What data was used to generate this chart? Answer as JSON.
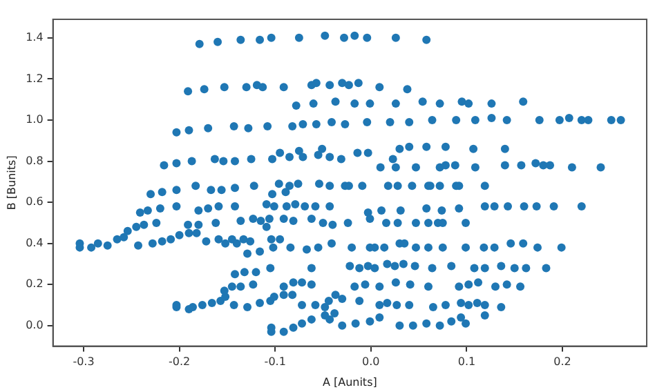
{
  "chart_data": {
    "type": "scatter",
    "xlabel": "A [Aunits]",
    "ylabel": "B [Bunits]",
    "marker": "circle",
    "grid": false,
    "legend": false,
    "xlim": [
      -0.332,
      0.288
    ],
    "ylim": [
      -0.1,
      1.49
    ],
    "xticks": [
      -0.3,
      -0.2,
      -0.1,
      {
        "value": 0,
        "label": "0.0"
      },
      0.1,
      0.2
    ],
    "yticks": [
      {
        "value": 0,
        "label": "0.0"
      },
      0.2,
      0.4,
      0.6,
      0.8,
      {
        "value": 1,
        "label": "1.0"
      },
      1.2,
      1.4
    ],
    "series": [
      {
        "color": "#1f77b4",
        "x": [
          -0.179,
          -0.16,
          -0.136,
          -0.116,
          -0.104,
          -0.075,
          -0.048,
          -0.028,
          -0.017,
          -0.004,
          0.026,
          0.058,
          -0.191,
          -0.174,
          -0.153,
          -0.13,
          -0.119,
          -0.113,
          -0.091,
          -0.062,
          -0.057,
          -0.043,
          -0.03,
          -0.023,
          -0.013,
          0.009,
          0.038,
          -0.078,
          -0.06,
          -0.037,
          -0.017,
          -0.001,
          0.026,
          0.054,
          0.072,
          0.095,
          0.102,
          0.126,
          0.159,
          -0.203,
          -0.19,
          -0.17,
          -0.143,
          -0.128,
          -0.108,
          -0.082,
          -0.071,
          -0.057,
          -0.041,
          -0.027,
          -0.004,
          0.02,
          0.04,
          0.064,
          0.089,
          0.109,
          0.126,
          0.142,
          0.176,
          0.197,
          0.207,
          0.22,
          0.227,
          0.251,
          0.261,
          -0.216,
          -0.203,
          -0.187,
          -0.163,
          -0.154,
          -0.142,
          -0.125,
          -0.103,
          -0.095,
          -0.085,
          -0.075,
          -0.071,
          -0.055,
          -0.051,
          -0.043,
          -0.031,
          -0.014,
          -0.003,
          0.023,
          0.03,
          0.04,
          0.058,
          0.078,
          0.107,
          0.14,
          0.01,
          0.026,
          0.047,
          0.072,
          0.078,
          0.088,
          0.109,
          0.14,
          0.157,
          0.172,
          0.18,
          0.187,
          0.21,
          0.24,
          -0.23,
          -0.218,
          -0.203,
          -0.183,
          -0.167,
          -0.156,
          -0.142,
          -0.122,
          -0.103,
          -0.096,
          -0.089,
          -0.085,
          -0.076,
          -0.054,
          -0.043,
          -0.027,
          -0.023,
          -0.009,
          0.018,
          0.028,
          0.043,
          0.06,
          0.062,
          0.072,
          0.089,
          0.092,
          0.119,
          -0.241,
          -0.233,
          -0.22,
          -0.203,
          -0.18,
          -0.17,
          -0.159,
          -0.142,
          -0.109,
          -0.101,
          -0.088,
          -0.079,
          -0.069,
          -0.058,
          -0.043,
          -0.003,
          0.011,
          0.031,
          0.058,
          0.074,
          0.092,
          0.119,
          0.129,
          0.143,
          0.16,
          0.173,
          0.191,
          0.22,
          -0.024,
          -0.001,
          0.016,
          0.028,
          0.047,
          0.06,
          0.07,
          0.075,
          0.099,
          -0.136,
          -0.123,
          -0.115,
          -0.106,
          -0.109,
          -0.091,
          -0.081,
          -0.062,
          -0.05,
          -0.04,
          -0.304,
          -0.304,
          -0.292,
          -0.285,
          -0.275,
          -0.265,
          -0.258,
          -0.254,
          -0.245,
          -0.237,
          -0.224,
          -0.243,
          -0.228,
          -0.218,
          -0.209,
          -0.2,
          -0.19,
          -0.182,
          -0.172,
          -0.191,
          -0.18,
          -0.162,
          -0.159,
          -0.152,
          -0.145,
          -0.14,
          -0.133,
          -0.126,
          -0.129,
          -0.116,
          -0.102,
          -0.104,
          -0.095,
          -0.084,
          -0.067,
          -0.055,
          -0.041,
          -0.02,
          -0.001,
          0.004,
          0.014,
          0.03,
          0.035,
          0.047,
          0.06,
          0.075,
          0.099,
          0.118,
          0.129,
          0.146,
          0.159,
          0.174,
          0.199,
          -0.105,
          -0.062,
          -0.022,
          -0.012,
          -0.003,
          0.004,
          0.017,
          0.025,
          0.034,
          0.046,
          0.064,
          0.084,
          0.108,
          0.119,
          0.136,
          0.15,
          0.162,
          0.183,
          -0.142,
          -0.132,
          -0.12,
          -0.153,
          -0.145,
          -0.136,
          -0.123,
          -0.091,
          -0.081,
          -0.072,
          -0.062,
          -0.091,
          -0.082,
          -0.017,
          -0.006,
          0.009,
          0.026,
          0.041,
          0.06,
          0.092,
          0.102,
          0.112,
          0.13,
          0.142,
          0.156,
          -0.203,
          -0.203,
          -0.19,
          -0.186,
          -0.176,
          -0.166,
          -0.157,
          -0.152,
          -0.143,
          -0.129,
          -0.116,
          -0.105,
          -0.101,
          -0.072,
          -0.058,
          -0.048,
          -0.044,
          -0.037,
          -0.03,
          -0.012,
          0.009,
          0.017,
          0.027,
          0.04,
          0.065,
          0.078,
          0.094,
          0.102,
          0.111,
          0.119,
          0.136,
          -0.104,
          -0.104,
          -0.091,
          -0.081,
          -0.072,
          -0.062,
          -0.048,
          -0.038,
          -0.043,
          -0.03,
          -0.016,
          -0.001,
          0.009,
          0.03,
          0.044,
          0.058,
          0.072,
          0.084,
          0.094,
          0.099,
          0.119
        ],
        "values": [
          1.37,
          1.38,
          1.39,
          1.39,
          1.4,
          1.4,
          1.41,
          1.4,
          1.41,
          1.4,
          1.4,
          1.39,
          1.14,
          1.15,
          1.16,
          1.16,
          1.17,
          1.16,
          1.16,
          1.17,
          1.18,
          1.17,
          1.18,
          1.17,
          1.18,
          1.16,
          1.15,
          1.07,
          1.08,
          1.09,
          1.08,
          1.08,
          1.08,
          1.09,
          1.08,
          1.09,
          1.08,
          1.08,
          1.09,
          0.94,
          0.95,
          0.96,
          0.97,
          0.96,
          0.97,
          0.97,
          0.98,
          0.98,
          0.99,
          0.98,
          0.99,
          0.99,
          0.99,
          1,
          1,
          1,
          1.01,
          1,
          1,
          1,
          1.01,
          1,
          1,
          1,
          1,
          0.78,
          0.79,
          0.8,
          0.81,
          0.8,
          0.8,
          0.81,
          0.81,
          0.84,
          0.82,
          0.85,
          0.82,
          0.83,
          0.86,
          0.82,
          0.81,
          0.84,
          0.84,
          0.81,
          0.86,
          0.87,
          0.87,
          0.87,
          0.86,
          0.86,
          0.77,
          0.77,
          0.77,
          0.77,
          0.78,
          0.78,
          0.77,
          0.78,
          0.78,
          0.79,
          0.78,
          0.78,
          0.77,
          0.77,
          0.64,
          0.65,
          0.66,
          0.68,
          0.66,
          0.66,
          0.67,
          0.68,
          0.64,
          0.69,
          0.65,
          0.68,
          0.69,
          0.69,
          0.68,
          0.68,
          0.68,
          0.68,
          0.68,
          0.68,
          0.68,
          0.68,
          0.68,
          0.68,
          0.68,
          0.68,
          0.68,
          0.55,
          0.56,
          0.57,
          0.58,
          0.56,
          0.57,
          0.58,
          0.58,
          0.59,
          0.58,
          0.58,
          0.59,
          0.58,
          0.58,
          0.58,
          0.55,
          0.56,
          0.56,
          0.57,
          0.56,
          0.57,
          0.58,
          0.58,
          0.58,
          0.58,
          0.58,
          0.58,
          0.58,
          0.5,
          0.52,
          0.5,
          0.5,
          0.5,
          0.5,
          0.5,
          0.5,
          0.5,
          0.51,
          0.52,
          0.51,
          0.52,
          0.48,
          0.52,
          0.51,
          0.52,
          0.5,
          0.49,
          0.4,
          0.38,
          0.38,
          0.4,
          0.39,
          0.42,
          0.43,
          0.46,
          0.48,
          0.49,
          0.5,
          0.39,
          0.4,
          0.41,
          0.42,
          0.44,
          0.45,
          0.45,
          0.41,
          0.49,
          0.49,
          0.5,
          0.42,
          0.4,
          0.42,
          0.4,
          0.42,
          0.41,
          0.35,
          0.36,
          0.38,
          0.42,
          0.42,
          0.38,
          0.37,
          0.38,
          0.4,
          0.38,
          0.38,
          0.38,
          0.38,
          0.4,
          0.4,
          0.38,
          0.38,
          0.38,
          0.38,
          0.38,
          0.38,
          0.4,
          0.4,
          0.38,
          0.38,
          0.28,
          0.28,
          0.29,
          0.28,
          0.29,
          0.28,
          0.3,
          0.29,
          0.3,
          0.29,
          0.28,
          0.29,
          0.28,
          0.28,
          0.29,
          0.28,
          0.28,
          0.28,
          0.25,
          0.26,
          0.26,
          0.17,
          0.19,
          0.19,
          0.2,
          0.19,
          0.21,
          0.21,
          0.2,
          0.15,
          0.15,
          0.19,
          0.2,
          0.19,
          0.21,
          0.2,
          0.19,
          0.19,
          0.2,
          0.21,
          0.19,
          0.2,
          0.19,
          0.09,
          0.1,
          0.08,
          0.09,
          0.1,
          0.11,
          0.12,
          0.14,
          0.1,
          0.09,
          0.11,
          0.12,
          0.14,
          0.1,
          0.1,
          0.09,
          0.12,
          0.15,
          0.13,
          0.12,
          0.1,
          0.11,
          0.1,
          0.1,
          0.09,
          0.1,
          0.11,
          0.1,
          0.11,
          0.1,
          0.09,
          -0.01,
          -0.03,
          -0.03,
          -0.01,
          0.01,
          0.03,
          0.05,
          0.06,
          0.03,
          0,
          0.01,
          0.02,
          0.04,
          0,
          0,
          0.01,
          0,
          0.02,
          0.04,
          0.01,
          0.05
        ]
      }
    ]
  }
}
